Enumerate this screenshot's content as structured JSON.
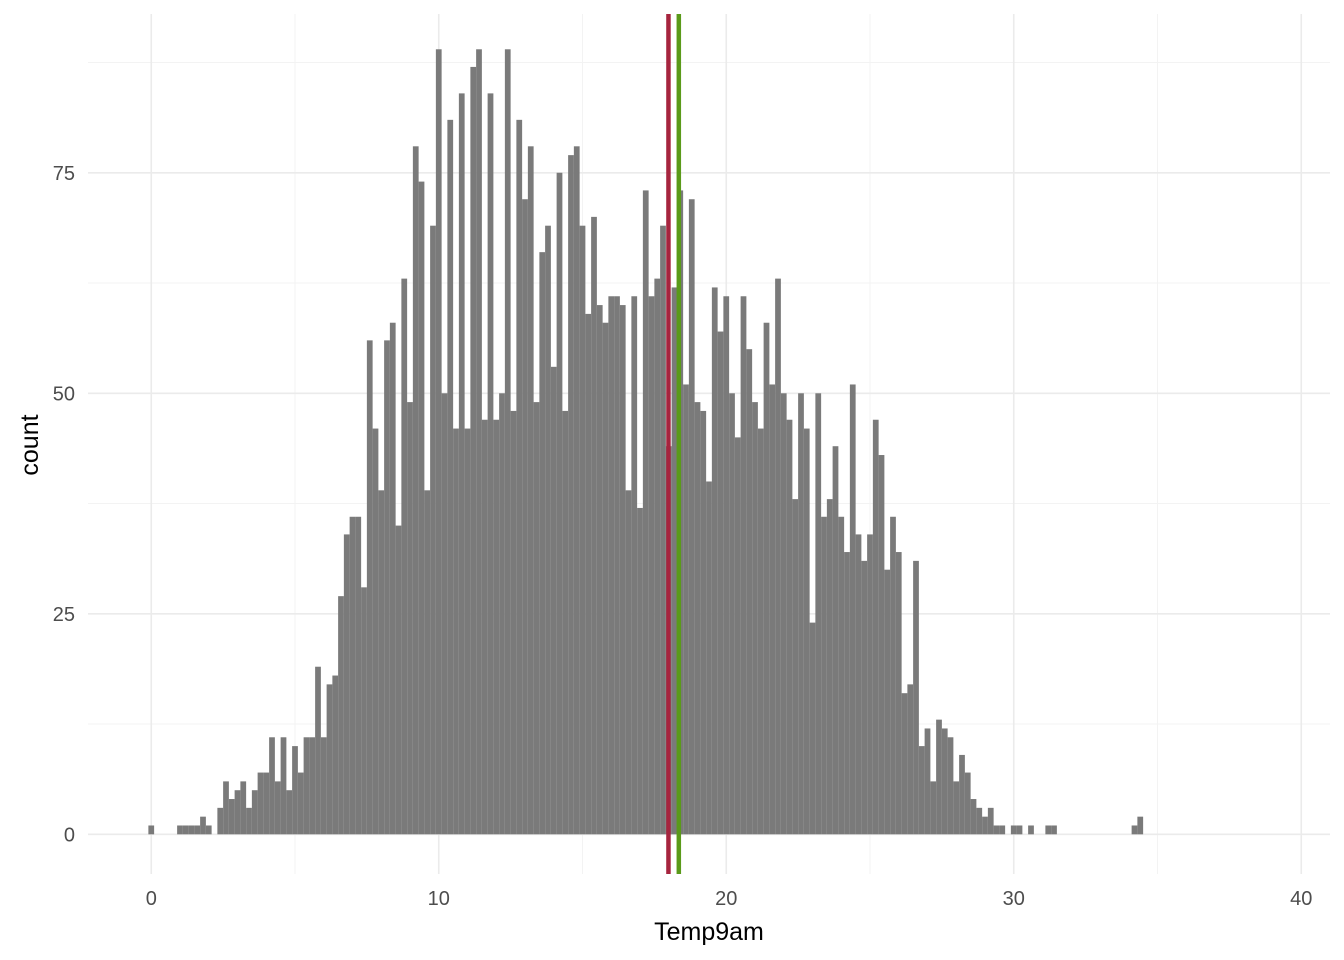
{
  "chart_data": {
    "type": "bar",
    "title": "",
    "xlabel": "Temp9am",
    "ylabel": "count",
    "xlim": [
      -2.2,
      41.0
    ],
    "ylim": [
      -4.5,
      93.0
    ],
    "x_ticks": [
      0,
      10,
      20,
      30,
      40
    ],
    "y_ticks": [
      0,
      25,
      50,
      75
    ],
    "grid": true,
    "bin_width": 0.2,
    "bar_color": "#7a7a7a",
    "bins_start": -0.1,
    "counts": [
      1,
      0,
      0,
      0,
      0,
      1,
      1,
      1,
      1,
      2,
      1,
      0,
      3,
      6,
      4,
      5,
      6,
      3,
      5,
      7,
      7,
      11,
      6,
      11,
      5,
      10,
      7,
      11,
      11,
      19,
      11,
      17,
      18,
      27,
      34,
      36,
      36,
      28,
      56,
      46,
      39,
      56,
      58,
      35,
      63,
      49,
      78,
      74,
      39,
      69,
      89,
      50,
      81,
      46,
      84,
      46,
      87,
      89,
      47,
      84,
      47,
      50,
      89,
      48,
      81,
      72,
      78,
      49,
      66,
      69,
      53,
      75,
      48,
      77,
      78,
      69,
      59,
      70,
      60,
      58,
      61,
      61,
      60,
      39,
      61,
      37,
      73,
      61,
      63,
      69,
      44,
      62,
      73,
      51,
      72,
      49,
      48,
      40,
      62,
      57,
      61,
      50,
      45,
      61,
      55,
      49,
      46,
      58,
      51,
      63,
      50,
      47,
      38,
      50,
      46,
      24,
      50,
      36,
      38,
      44,
      36,
      32,
      51,
      34,
      31,
      34,
      47,
      43,
      30,
      36,
      32,
      16,
      17,
      31,
      10,
      12,
      6,
      13,
      12,
      11,
      6,
      9,
      7,
      4,
      3,
      2,
      3,
      1,
      1,
      0,
      1,
      1,
      0,
      1,
      0,
      0,
      1,
      1,
      0,
      0,
      0,
      0,
      0,
      0,
      0,
      0,
      0,
      0,
      0,
      0,
      0,
      1,
      2
    ],
    "mean_line": {
      "x": 17.99,
      "color": "#a6243e"
    },
    "median_line": {
      "x": 18.35,
      "color": "#5a9a1a"
    }
  }
}
